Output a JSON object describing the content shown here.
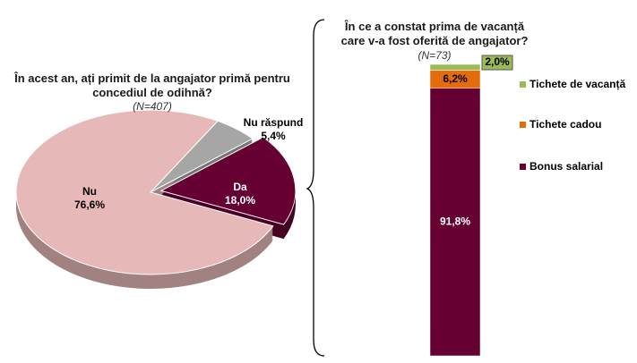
{
  "chart_data": [
    {
      "type": "pie",
      "title": "În acest an, ați primit de la angajator primă pentru concediul de odihnă?",
      "subtitle": "(N=407)",
      "categories": [
        "Nu răspund",
        "Da",
        "Nu"
      ],
      "values": [
        5.4,
        18.0,
        76.6
      ],
      "value_labels": [
        "5,4%",
        "18,0%",
        "76,6%"
      ],
      "colors": [
        "#a6a6a6",
        "#660033",
        "#e6b9b8"
      ],
      "exploded": "Da"
    },
    {
      "type": "stacked-bar",
      "title": "În ce a constat prima de vacanță care v-a fost oferită de angajator?",
      "subtitle": "(N=73)",
      "ylim": [
        0,
        100
      ],
      "series": [
        {
          "name": "Bonus salarial",
          "color": "#660033",
          "values": [
            91.8
          ],
          "value_labels": [
            "91,8%"
          ]
        },
        {
          "name": "Tichete cadou",
          "color": "#e46c0a",
          "values": [
            6.2
          ],
          "value_labels": [
            "6,2%"
          ]
        },
        {
          "name": "Tichete de vacanță",
          "color": "#9bbb59",
          "values": [
            2.0
          ],
          "value_labels": [
            "2,0%"
          ]
        }
      ]
    }
  ]
}
